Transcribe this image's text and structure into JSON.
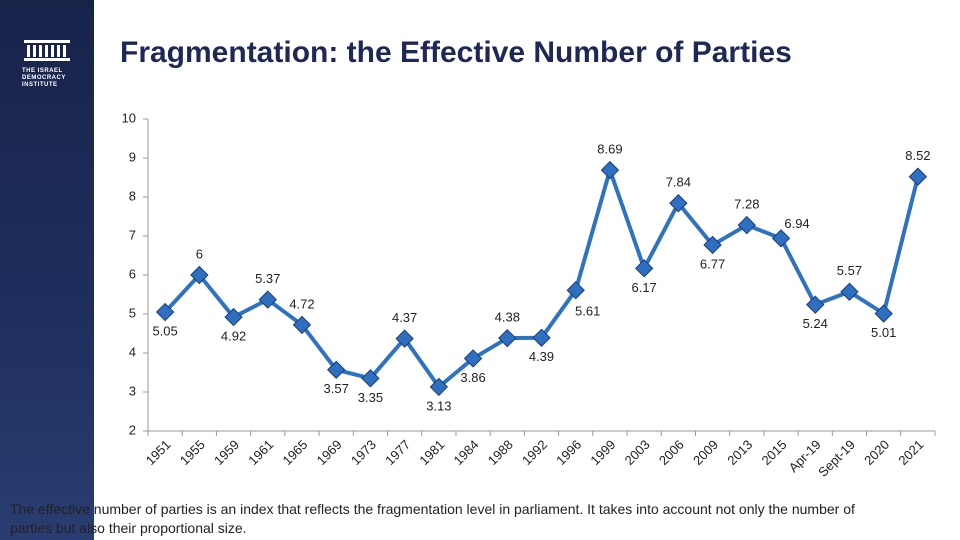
{
  "logo": {
    "lines": [
      "THE ISRAEL",
      "DEMOCRACY",
      "INSTITUTE"
    ]
  },
  "footnote": "The effective number of parties is an index that reflects the fragmentation level in parliament. It takes into account not only the number of parties but also their proportional size.",
  "chart_data": {
    "type": "line",
    "title": "Fragmentation: the Effective Number of Parties",
    "categories": [
      "1951",
      "1955",
      "1959",
      "1961",
      "1965",
      "1969",
      "1973",
      "1977",
      "1981",
      "1984",
      "1988",
      "1992",
      "1996",
      "1999",
      "2003",
      "2006",
      "2009",
      "2013",
      "2015",
      "Apr-19",
      "Sept-19",
      "2020",
      "2021"
    ],
    "series": [
      {
        "name": "Effective number of parties",
        "color": "#2e72c4",
        "values": [
          5.05,
          6,
          4.92,
          5.37,
          4.72,
          3.57,
          3.35,
          4.37,
          3.13,
          3.86,
          4.38,
          4.39,
          5.61,
          8.69,
          6.17,
          7.84,
          6.77,
          7.28,
          6.94,
          5.24,
          5.57,
          5.01,
          8.52
        ]
      }
    ],
    "ylim": [
      2,
      10
    ],
    "yticks": [
      2,
      3,
      4,
      5,
      6,
      7,
      8,
      9,
      10
    ],
    "grid": false,
    "data_labels": true
  }
}
